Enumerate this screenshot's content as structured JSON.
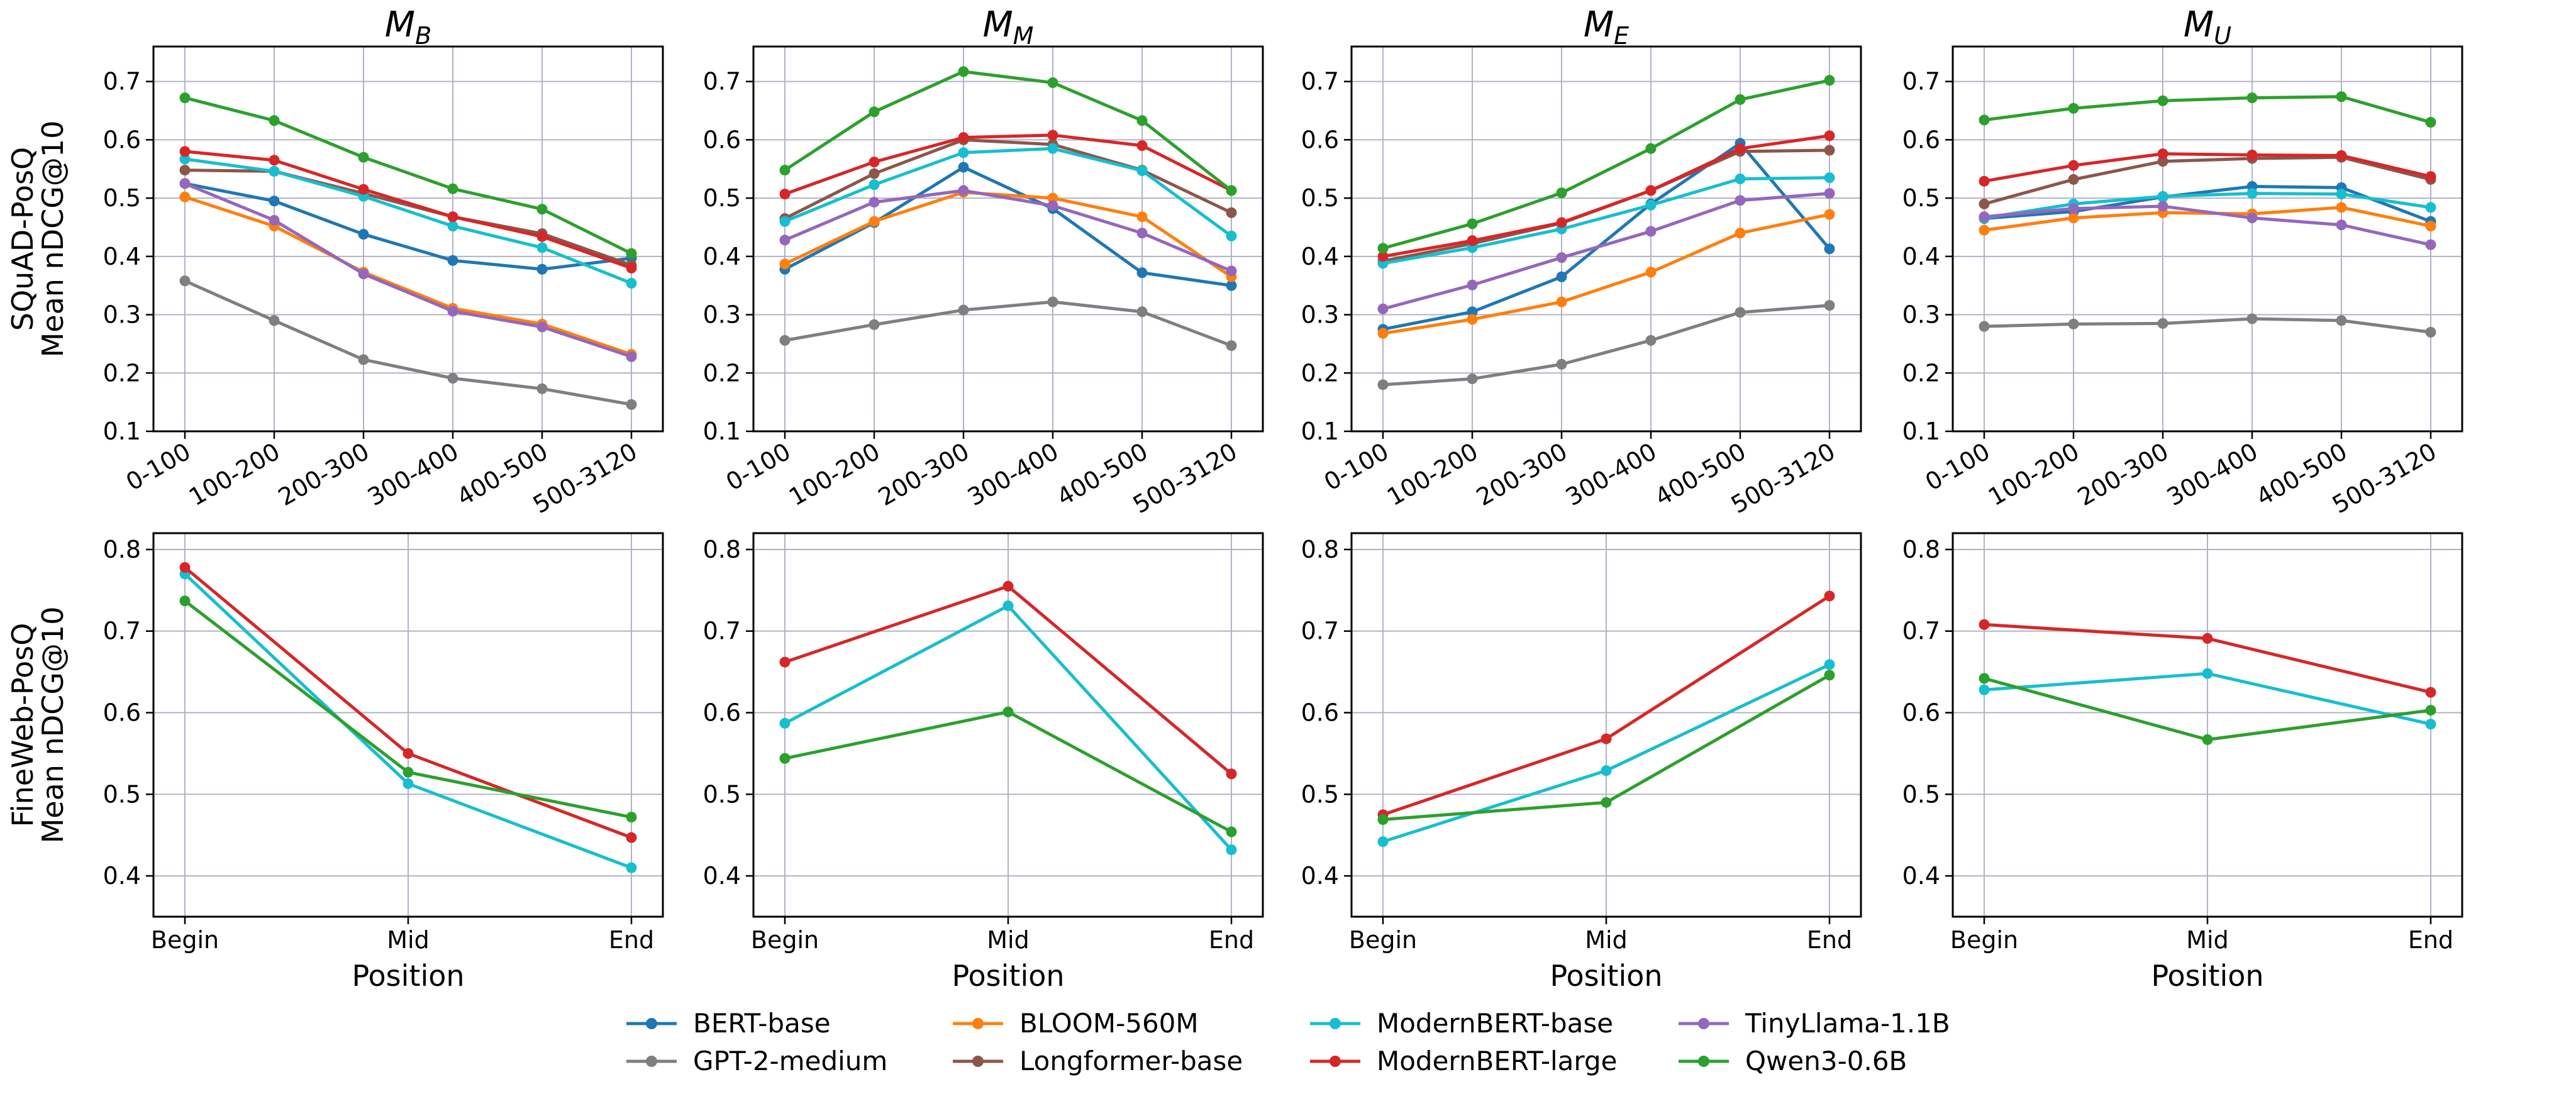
{
  "series_styles": [
    {
      "name": "BERT-base",
      "color": "#1f77b4"
    },
    {
      "name": "GPT-2-medium",
      "color": "#7f7f7f"
    },
    {
      "name": "BLOOM-560M",
      "color": "#ff7f0e"
    },
    {
      "name": "Longformer-base",
      "color": "#8c564b"
    },
    {
      "name": "ModernBERT-base",
      "color": "#17becf"
    },
    {
      "name": "ModernBERT-large",
      "color": "#d62728"
    },
    {
      "name": "TinyLlama-1.1B",
      "color": "#9467bd"
    },
    {
      "name": "Qwen3-0.6B",
      "color": "#2ca02c"
    }
  ],
  "legend": {
    "placement": "bottom-center",
    "entries": [
      "BERT-base",
      "GPT-2-medium",
      "BLOOM-560M",
      "Longformer-base",
      "ModernBERT-base",
      "ModernBERT-large",
      "TinyLlama-1.1B",
      "Qwen3-0.6B"
    ]
  },
  "chart_data": [
    {
      "type": "line",
      "title_base": "M",
      "title_sub": "B",
      "ylabel": [
        "SQuAD-PosQ",
        "Mean nDCG@10"
      ],
      "xlabel": "",
      "categories": [
        "0-100",
        "100-200",
        "200-300",
        "300-400",
        "400-500",
        "500-3120"
      ],
      "ylim": [
        0.1,
        0.76
      ],
      "yticks": [
        0.1,
        0.2,
        0.3,
        0.4,
        0.5,
        0.6,
        0.7
      ],
      "grid": true,
      "series": [
        {
          "name": "BERT-base",
          "values": [
            0.525,
            0.495,
            0.438,
            0.393,
            0.378,
            0.397
          ]
        },
        {
          "name": "GPT-2-medium",
          "values": [
            0.358,
            0.29,
            0.223,
            0.191,
            0.173,
            0.146
          ]
        },
        {
          "name": "BLOOM-560M",
          "values": [
            0.502,
            0.452,
            0.373,
            0.311,
            0.284,
            0.232
          ]
        },
        {
          "name": "Longformer-base",
          "values": [
            0.548,
            0.546,
            0.508,
            0.468,
            0.439,
            0.385
          ]
        },
        {
          "name": "ModernBERT-base",
          "values": [
            0.567,
            0.546,
            0.503,
            0.452,
            0.415,
            0.354
          ]
        },
        {
          "name": "ModernBERT-large",
          "values": [
            0.58,
            0.565,
            0.515,
            0.468,
            0.434,
            0.38
          ]
        },
        {
          "name": "TinyLlama-1.1B",
          "values": [
            0.525,
            0.462,
            0.37,
            0.306,
            0.279,
            0.228
          ]
        },
        {
          "name": "Qwen3-0.6B",
          "values": [
            0.672,
            0.633,
            0.57,
            0.516,
            0.481,
            0.405
          ]
        }
      ]
    },
    {
      "type": "line",
      "title_base": "M",
      "title_sub": "M",
      "ylabel": [],
      "xlabel": "",
      "categories": [
        "0-100",
        "100-200",
        "200-300",
        "300-400",
        "400-500",
        "500-3120"
      ],
      "ylim": [
        0.1,
        0.76
      ],
      "yticks": [
        0.1,
        0.2,
        0.3,
        0.4,
        0.5,
        0.6,
        0.7
      ],
      "grid": true,
      "series": [
        {
          "name": "BERT-base",
          "values": [
            0.378,
            0.458,
            0.553,
            0.482,
            0.372,
            0.35
          ]
        },
        {
          "name": "GPT-2-medium",
          "values": [
            0.256,
            0.283,
            0.308,
            0.322,
            0.305,
            0.247
          ]
        },
        {
          "name": "BLOOM-560M",
          "values": [
            0.387,
            0.46,
            0.51,
            0.5,
            0.468,
            0.365
          ]
        },
        {
          "name": "Longformer-base",
          "values": [
            0.465,
            0.542,
            0.6,
            0.592,
            0.548,
            0.475
          ]
        },
        {
          "name": "ModernBERT-base",
          "values": [
            0.46,
            0.523,
            0.578,
            0.585,
            0.547,
            0.435
          ]
        },
        {
          "name": "ModernBERT-large",
          "values": [
            0.507,
            0.562,
            0.604,
            0.608,
            0.59,
            0.513
          ]
        },
        {
          "name": "TinyLlama-1.1B",
          "values": [
            0.428,
            0.493,
            0.513,
            0.487,
            0.44,
            0.375
          ]
        },
        {
          "name": "Qwen3-0.6B",
          "values": [
            0.548,
            0.648,
            0.717,
            0.698,
            0.633,
            0.513
          ]
        }
      ]
    },
    {
      "type": "line",
      "title_base": "M",
      "title_sub": "E",
      "ylabel": [],
      "xlabel": "",
      "categories": [
        "0-100",
        "100-200",
        "200-300",
        "300-400",
        "400-500",
        "500-3120"
      ],
      "ylim": [
        0.1,
        0.76
      ],
      "yticks": [
        0.1,
        0.2,
        0.3,
        0.4,
        0.5,
        0.6,
        0.7
      ],
      "grid": true,
      "series": [
        {
          "name": "BERT-base",
          "values": [
            0.275,
            0.305,
            0.365,
            0.49,
            0.594,
            0.413
          ]
        },
        {
          "name": "GPT-2-medium",
          "values": [
            0.18,
            0.19,
            0.215,
            0.256,
            0.304,
            0.316
          ]
        },
        {
          "name": "BLOOM-560M",
          "values": [
            0.268,
            0.292,
            0.322,
            0.373,
            0.44,
            0.472
          ]
        },
        {
          "name": "Longformer-base",
          "values": [
            0.392,
            0.422,
            0.457,
            0.513,
            0.58,
            0.582
          ]
        },
        {
          "name": "ModernBERT-base",
          "values": [
            0.388,
            0.415,
            0.447,
            0.488,
            0.533,
            0.535
          ]
        },
        {
          "name": "ModernBERT-large",
          "values": [
            0.4,
            0.427,
            0.458,
            0.513,
            0.585,
            0.607
          ]
        },
        {
          "name": "TinyLlama-1.1B",
          "values": [
            0.31,
            0.351,
            0.398,
            0.443,
            0.496,
            0.508
          ]
        },
        {
          "name": "Qwen3-0.6B",
          "values": [
            0.414,
            0.456,
            0.509,
            0.585,
            0.669,
            0.702
          ]
        }
      ]
    },
    {
      "type": "line",
      "title_base": "M",
      "title_sub": "U",
      "ylabel": [],
      "xlabel": "",
      "categories": [
        "0-100",
        "100-200",
        "200-300",
        "300-400",
        "400-500",
        "500-3120"
      ],
      "ylim": [
        0.1,
        0.76
      ],
      "yticks": [
        0.1,
        0.2,
        0.3,
        0.4,
        0.5,
        0.6,
        0.7
      ],
      "grid": true,
      "series": [
        {
          "name": "BERT-base",
          "values": [
            0.465,
            0.477,
            0.502,
            0.52,
            0.518,
            0.46
          ]
        },
        {
          "name": "GPT-2-medium",
          "values": [
            0.28,
            0.284,
            0.285,
            0.293,
            0.29,
            0.27
          ]
        },
        {
          "name": "BLOOM-560M",
          "values": [
            0.445,
            0.466,
            0.475,
            0.473,
            0.484,
            0.452
          ]
        },
        {
          "name": "Longformer-base",
          "values": [
            0.49,
            0.532,
            0.563,
            0.568,
            0.57,
            0.532
          ]
        },
        {
          "name": "ModernBERT-base",
          "values": [
            0.466,
            0.49,
            0.503,
            0.508,
            0.507,
            0.484
          ]
        },
        {
          "name": "ModernBERT-large",
          "values": [
            0.529,
            0.556,
            0.576,
            0.574,
            0.573,
            0.537
          ]
        },
        {
          "name": "TinyLlama-1.1B",
          "values": [
            0.468,
            0.482,
            0.486,
            0.466,
            0.454,
            0.42
          ]
        },
        {
          "name": "Qwen3-0.6B",
          "values": [
            0.634,
            0.654,
            0.667,
            0.672,
            0.674,
            0.63
          ]
        }
      ]
    },
    {
      "type": "line",
      "title_base": "",
      "title_sub": "",
      "ylabel": [
        "FineWeb-PosQ",
        "Mean nDCG@10"
      ],
      "xlabel": "Position",
      "categories": [
        "Begin",
        "Mid",
        "End"
      ],
      "ylim": [
        0.35,
        0.82
      ],
      "yticks": [
        0.4,
        0.5,
        0.6,
        0.7,
        0.8
      ],
      "grid": true,
      "series": [
        {
          "name": "ModernBERT-base",
          "values": [
            0.77,
            0.513,
            0.41
          ]
        },
        {
          "name": "ModernBERT-large",
          "values": [
            0.778,
            0.55,
            0.447
          ]
        },
        {
          "name": "Qwen3-0.6B",
          "values": [
            0.737,
            0.527,
            0.472
          ]
        }
      ]
    },
    {
      "type": "line",
      "title_base": "",
      "title_sub": "",
      "ylabel": [],
      "xlabel": "Position",
      "categories": [
        "Begin",
        "Mid",
        "End"
      ],
      "ylim": [
        0.35,
        0.82
      ],
      "yticks": [
        0.4,
        0.5,
        0.6,
        0.7,
        0.8
      ],
      "grid": true,
      "series": [
        {
          "name": "ModernBERT-base",
          "values": [
            0.587,
            0.731,
            0.432
          ]
        },
        {
          "name": "ModernBERT-large",
          "values": [
            0.662,
            0.755,
            0.525
          ]
        },
        {
          "name": "Qwen3-0.6B",
          "values": [
            0.544,
            0.601,
            0.454
          ]
        }
      ]
    },
    {
      "type": "line",
      "title_base": "",
      "title_sub": "",
      "ylabel": [],
      "xlabel": "Position",
      "categories": [
        "Begin",
        "Mid",
        "End"
      ],
      "ylim": [
        0.35,
        0.82
      ],
      "yticks": [
        0.4,
        0.5,
        0.6,
        0.7,
        0.8
      ],
      "grid": true,
      "series": [
        {
          "name": "ModernBERT-base",
          "values": [
            0.442,
            0.529,
            0.659
          ]
        },
        {
          "name": "ModernBERT-large",
          "values": [
            0.475,
            0.568,
            0.743
          ]
        },
        {
          "name": "Qwen3-0.6B",
          "values": [
            0.469,
            0.49,
            0.646
          ]
        }
      ]
    },
    {
      "type": "line",
      "title_base": "",
      "title_sub": "",
      "ylabel": [],
      "xlabel": "Position",
      "categories": [
        "Begin",
        "Mid",
        "End"
      ],
      "ylim": [
        0.35,
        0.82
      ],
      "yticks": [
        0.4,
        0.5,
        0.6,
        0.7,
        0.8
      ],
      "grid": true,
      "series": [
        {
          "name": "ModernBERT-base",
          "values": [
            0.628,
            0.648,
            0.586
          ]
        },
        {
          "name": "ModernBERT-large",
          "values": [
            0.708,
            0.691,
            0.625
          ]
        },
        {
          "name": "Qwen3-0.6B",
          "values": [
            0.642,
            0.567,
            0.603
          ]
        }
      ]
    }
  ]
}
